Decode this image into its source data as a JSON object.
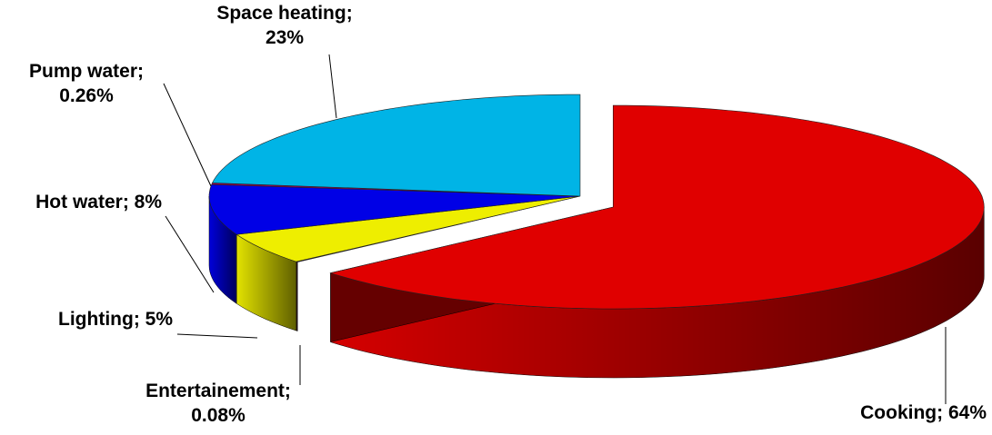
{
  "chart_data": {
    "type": "pie3d",
    "labels": [
      "Cooking; 64%",
      "Entertainement; 0.08%",
      "Lighting; 5%",
      "Hot water; 8%",
      "Pump water; 0.26%",
      "Space heating; 23%"
    ],
    "values": [
      64,
      0.08,
      5,
      8,
      0.26,
      23
    ],
    "colors": [
      "#e00000",
      "#4a1f2e",
      "#eeee00",
      "#0000e6",
      "#9a0050",
      "#00b4e6"
    ],
    "start_angle": 90,
    "direction": "clockwise",
    "exploded": [
      0
    ]
  }
}
